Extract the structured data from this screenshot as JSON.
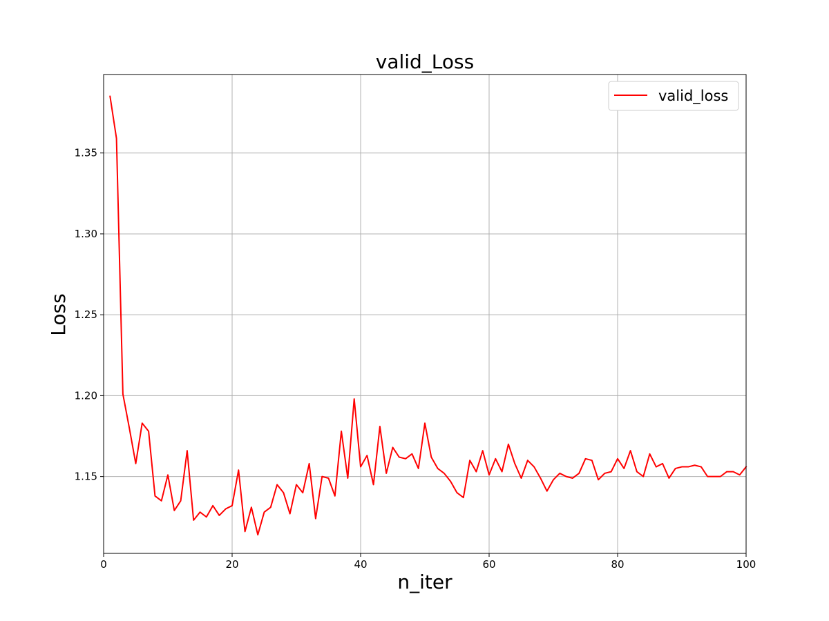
{
  "chart_data": {
    "type": "line",
    "title": "valid_Loss",
    "xlabel": "n_iter",
    "ylabel": "Loss",
    "xlim": [
      0,
      100
    ],
    "ylim": [
      1.1025,
      1.3985
    ],
    "xticks": [
      0,
      20,
      40,
      60,
      80,
      100
    ],
    "yticks": [
      1.15,
      1.2,
      1.25,
      1.3,
      1.35
    ],
    "ytick_labels": [
      "1.15",
      "1.20",
      "1.25",
      "1.30",
      "1.35"
    ],
    "grid": true,
    "legend_position": "top-right",
    "series": [
      {
        "name": "valid_loss",
        "color": "#ff0000",
        "x": [
          1,
          2,
          3,
          4,
          5,
          6,
          7,
          8,
          9,
          10,
          11,
          12,
          13,
          14,
          15,
          16,
          17,
          18,
          19,
          20,
          21,
          22,
          23,
          24,
          25,
          26,
          27,
          28,
          29,
          30,
          31,
          32,
          33,
          34,
          35,
          36,
          37,
          38,
          39,
          40,
          41,
          42,
          43,
          44,
          45,
          46,
          47,
          48,
          49,
          50,
          51,
          52,
          53,
          54,
          55,
          56,
          57,
          58,
          59,
          60,
          61,
          62,
          63,
          64,
          65,
          66,
          67,
          68,
          69,
          70,
          71,
          72,
          73,
          74,
          75,
          76,
          77,
          78,
          79,
          80,
          81,
          82,
          83,
          84,
          85,
          86,
          87,
          88,
          89,
          90,
          91,
          92,
          93,
          94,
          95,
          96,
          97,
          98,
          99,
          100
        ],
        "values": [
          1.385,
          1.359,
          1.201,
          1.18,
          1.158,
          1.183,
          1.178,
          1.138,
          1.135,
          1.151,
          1.129,
          1.135,
          1.166,
          1.123,
          1.128,
          1.125,
          1.132,
          1.126,
          1.13,
          1.132,
          1.154,
          1.116,
          1.131,
          1.114,
          1.128,
          1.131,
          1.145,
          1.14,
          1.127,
          1.145,
          1.14,
          1.158,
          1.124,
          1.15,
          1.149,
          1.138,
          1.178,
          1.149,
          1.198,
          1.156,
          1.163,
          1.145,
          1.181,
          1.152,
          1.168,
          1.162,
          1.161,
          1.164,
          1.155,
          1.183,
          1.162,
          1.155,
          1.152,
          1.147,
          1.14,
          1.137,
          1.16,
          1.153,
          1.166,
          1.151,
          1.161,
          1.153,
          1.17,
          1.158,
          1.149,
          1.16,
          1.156,
          1.149,
          1.141,
          1.148,
          1.152,
          1.15,
          1.149,
          1.152,
          1.161,
          1.16,
          1.148,
          1.152,
          1.153,
          1.161,
          1.155,
          1.166,
          1.153,
          1.15,
          1.164,
          1.156,
          1.158,
          1.149,
          1.155,
          1.156,
          1.156,
          1.157,
          1.156,
          1.15,
          1.15,
          1.15,
          1.153,
          1.153,
          1.151,
          1.156
        ]
      }
    ]
  }
}
